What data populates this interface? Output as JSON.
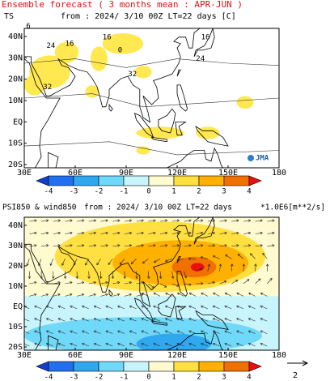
{
  "header": {
    "title": "Ensemble forecast ( 3 months mean : APR-JUN )"
  },
  "panels": [
    {
      "variable": "TS",
      "subtitle": "from : 2024/ 3/10 00Z LT=22 days [C]",
      "lat_labels": [
        "40N",
        "30N",
        "20N",
        "10N",
        "EQ",
        "10S",
        "20S"
      ],
      "lon_labels": [
        "30E",
        "60E",
        "90E",
        "120E",
        "150E",
        "180"
      ],
      "contour_labels": [
        "6",
        "24",
        "16",
        "16",
        "0",
        "16",
        "24",
        "32",
        "32"
      ],
      "logo": "JMA",
      "colorbar": [
        -4,
        -3,
        -2,
        -1,
        0,
        1,
        2,
        3,
        4
      ]
    },
    {
      "variable": "PSI850 & wind850",
      "subtitle": "from : 2024/ 3/10 00Z LT=22 days",
      "units": "*1.0E6[m**2/s]",
      "lat_labels": [
        "40N",
        "30N",
        "20N",
        "10N",
        "EQ",
        "10S",
        "20S"
      ],
      "lon_labels": [
        "30E",
        "60E",
        "90E",
        "120E",
        "150E",
        "180"
      ],
      "colorbar": [
        -4,
        -3,
        -2,
        -1,
        0,
        1,
        2,
        3,
        4
      ],
      "reference_vector": 2
    }
  ]
}
